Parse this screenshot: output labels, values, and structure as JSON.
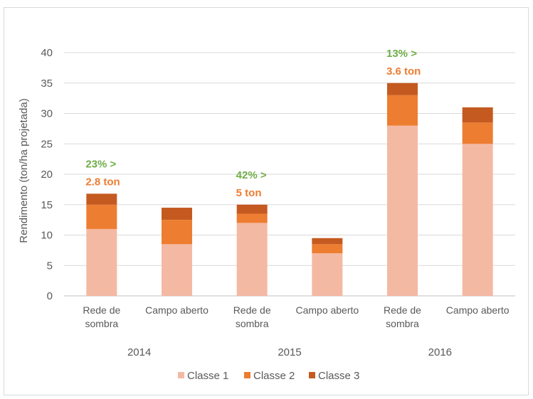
{
  "chart_data": {
    "type": "bar",
    "stacked": true,
    "ylabel": "Rendimento (ton/ha projetada)",
    "ylim": [
      0,
      40
    ],
    "yticks": [
      "0",
      "5",
      "10",
      "15",
      "20",
      "25",
      "30",
      "35",
      "40"
    ],
    "grid": true,
    "legend_position": "bottom",
    "categories": [
      {
        "label": [
          "Rede de",
          "sombra"
        ],
        "group": "2014"
      },
      {
        "label": [
          "Campo aberto"
        ],
        "group": "2014"
      },
      {
        "label": [
          "Rede de",
          "sombra"
        ],
        "group": "2015"
      },
      {
        "label": [
          "Campo aberto"
        ],
        "group": "2015"
      },
      {
        "label": [
          "Rede de",
          "sombra"
        ],
        "group": "2016"
      },
      {
        "label": [
          "Campo aberto"
        ],
        "group": "2016"
      }
    ],
    "groups": [
      "2014",
      "2015",
      "2016"
    ],
    "series": [
      {
        "name": "Classe 1",
        "color": "#f4b9a3",
        "values": [
          11,
          8.5,
          12,
          7,
          28,
          25
        ]
      },
      {
        "name": "Classe 2",
        "color": "#ed7d31",
        "values": [
          4,
          4,
          1.5,
          1.5,
          5,
          3.5
        ]
      },
      {
        "name": "Classe 3",
        "color": "#c55a20",
        "values": [
          1.8,
          2,
          1.5,
          1,
          2,
          2.5
        ]
      }
    ],
    "annotations": [
      {
        "bar_index": 0,
        "pct": "23% >",
        "ton": "2.8 ton"
      },
      {
        "bar_index": 2,
        "pct": "42% >",
        "ton": "5 ton"
      },
      {
        "bar_index": 4,
        "pct": "13% >",
        "ton": "3.6 ton"
      }
    ],
    "annotation_colors": {
      "pct": "#70ad47",
      "ton": "#ed7d31"
    }
  }
}
